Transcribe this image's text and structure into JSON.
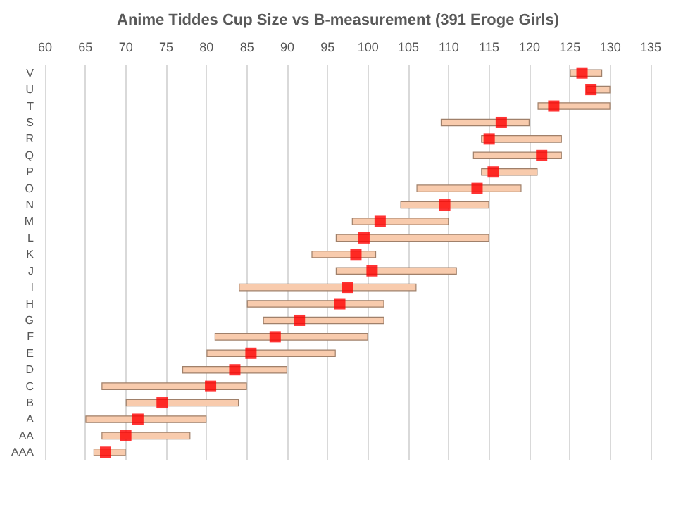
{
  "chart_data": {
    "type": "bar",
    "title": "Anime Tiddes Cup Size vs B-measurement (391 Eroge Girls)",
    "orientation": "horizontal",
    "categories": [
      "V",
      "U",
      "T",
      "S",
      "R",
      "Q",
      "P",
      "O",
      "N",
      "M",
      "L",
      "K",
      "J",
      "I",
      "H",
      "G",
      "F",
      "E",
      "D",
      "C",
      "B",
      "A",
      "AA",
      "AAA"
    ],
    "series": [
      {
        "type": "bar",
        "color": "#f8cbad",
        "base": [
          125,
          127,
          121,
          109,
          114,
          113,
          114,
          106,
          104,
          98,
          96,
          93,
          96,
          84,
          85,
          87,
          81,
          80,
          77,
          67,
          70,
          65,
          67,
          66
        ],
        "values": [
          4,
          3,
          9,
          11,
          10,
          11,
          7,
          13,
          11,
          12,
          19,
          8,
          15,
          22,
          17,
          15,
          19,
          16,
          13,
          18,
          14,
          15,
          11,
          4
        ]
      },
      {
        "type": "scatter",
        "color": "#ff0000",
        "marker": "square",
        "values": [
          126.5,
          127.6,
          123,
          116.5,
          115,
          121.5,
          115.5,
          113.5,
          109.5,
          101.5,
          99.5,
          98.5,
          100.5,
          97.5,
          96.5,
          91.5,
          88.5,
          85.5,
          83.5,
          80.5,
          74.5,
          71.5,
          70,
          67.5
        ]
      }
    ],
    "xlim": [
      60,
      135
    ],
    "xticks": [
      60,
      65,
      70,
      75,
      80,
      85,
      90,
      95,
      100,
      105,
      110,
      115,
      120,
      125,
      130,
      135
    ],
    "grid": "x"
  }
}
